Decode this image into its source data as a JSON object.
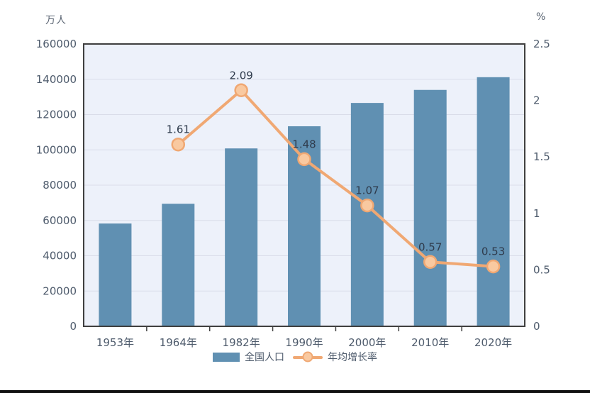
{
  "chart_data": {
    "type": "bar+line combo",
    "categories": [
      "1953年",
      "1964年",
      "1982年",
      "1990年",
      "2000年",
      "2010年",
      "2020年"
    ],
    "series": [
      {
        "name": "全国人口",
        "type": "bar",
        "axis": "left",
        "values": [
          58260,
          69458,
          100818,
          113368,
          126583,
          133972,
          141178
        ],
        "color": "#6090b2"
      },
      {
        "name": "年均增长率",
        "type": "line",
        "axis": "right",
        "x_indices": [
          1,
          2,
          3,
          4,
          5,
          6
        ],
        "values": [
          1.61,
          2.09,
          1.48,
          1.07,
          0.57,
          0.53
        ],
        "point_labels": [
          "1.61",
          "2.09",
          "1.48",
          "1.07",
          "0.57",
          "0.53"
        ],
        "line_color": "#f0a873",
        "marker_fill": "#f9c9a0",
        "marker_stroke": "#f0a873"
      }
    ],
    "left_axis": {
      "unit": "万人",
      "min": 0,
      "max": 160000,
      "step": 20000,
      "tick_labels": [
        "0",
        "20000",
        "40000",
        "60000",
        "80000",
        "100000",
        "120000",
        "140000",
        "160000"
      ]
    },
    "right_axis": {
      "unit": "%",
      "min": 0,
      "max": 2.5,
      "step": 0.5,
      "tick_labels": [
        "0",
        "0.5",
        "1",
        "1.5",
        "2",
        "2.5"
      ]
    },
    "grid": true,
    "legend_position": "bottom",
    "colors": {
      "plot_bg": "#edf1fa",
      "grid_line": "#dadde9",
      "plot_border": "#3f3f3f",
      "tick_text": "#4e5b6c",
      "data_label_text": "#2f3b4c",
      "bottom_bar": "#111111"
    }
  }
}
